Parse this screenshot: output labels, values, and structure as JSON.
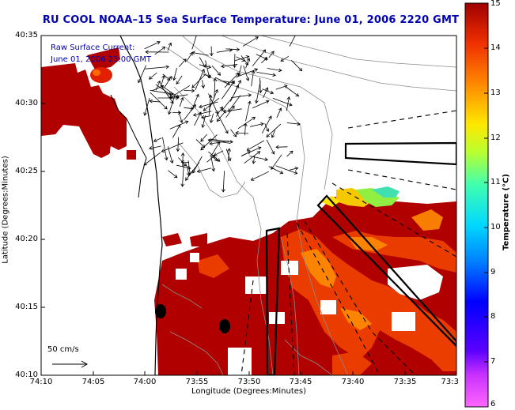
{
  "title": "RU COOL  NOAA–15  Sea Surface Temperature:  June 01, 2006 2220 GMT",
  "annotation": {
    "line1": "Raw Surface Current:",
    "line2": "June 01, 2006 23:00 GMT"
  },
  "axes": {
    "xlabel": "Longitude (Degrees:Minutes)",
    "ylabel": "Latitude (Degrees:Minutes)",
    "xticks": [
      "74:10",
      "74:05",
      "74:00",
      "73:55",
      "73:50",
      "73:45",
      "73:40",
      "73:35",
      "73:3"
    ],
    "yticks": [
      "40:35",
      "40:30",
      "40:25",
      "40:20",
      "40:15",
      "40:10"
    ]
  },
  "colorbar": {
    "label": "Temperature (°C)",
    "ticks": [
      "15",
      "14",
      "13",
      "12",
      "11",
      "10",
      "9",
      "8",
      "7",
      "6"
    ]
  },
  "scale_label": "50 cm/s",
  "colors": {
    "title": "#0000b4",
    "sst_warm": "#b00000",
    "sst_mid": "#e83a00",
    "sst_cool": "#f5a400"
  }
}
